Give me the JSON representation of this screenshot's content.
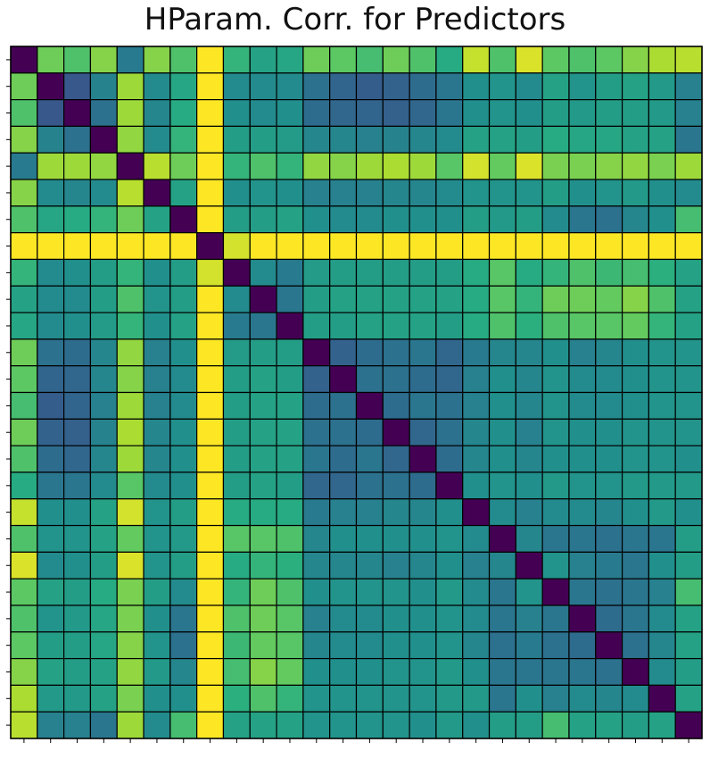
{
  "chart_data": {
    "type": "heatmap",
    "title": "HParam. Corr. for Predictors",
    "xlabel": "",
    "ylabel": "",
    "rows": 26,
    "cols": 26,
    "colormap": "viridis",
    "value_range": [
      0,
      1
    ],
    "grid": true,
    "legend": "none",
    "values": [
      [
        0.0,
        0.78,
        0.72,
        0.82,
        0.42,
        0.82,
        0.72,
        1.0,
        0.66,
        0.58,
        0.6,
        0.78,
        0.75,
        0.7,
        0.78,
        0.72,
        0.62,
        0.92,
        0.72,
        0.95,
        0.75,
        0.72,
        0.75,
        0.82,
        0.88,
        0.9
      ],
      [
        0.78,
        0.0,
        0.28,
        0.45,
        0.86,
        0.48,
        0.6,
        1.0,
        0.48,
        0.48,
        0.48,
        0.38,
        0.33,
        0.3,
        0.32,
        0.36,
        0.4,
        0.5,
        0.52,
        0.48,
        0.58,
        0.52,
        0.56,
        0.58,
        0.54,
        0.44
      ],
      [
        0.72,
        0.28,
        0.0,
        0.38,
        0.86,
        0.46,
        0.62,
        1.0,
        0.5,
        0.48,
        0.5,
        0.36,
        0.34,
        0.33,
        0.31,
        0.34,
        0.4,
        0.5,
        0.52,
        0.5,
        0.56,
        0.54,
        0.56,
        0.56,
        0.54,
        0.44
      ],
      [
        0.82,
        0.45,
        0.38,
        0.0,
        0.84,
        0.48,
        0.66,
        1.0,
        0.56,
        0.56,
        0.55,
        0.46,
        0.46,
        0.44,
        0.45,
        0.46,
        0.48,
        0.58,
        0.58,
        0.56,
        0.62,
        0.6,
        0.6,
        0.58,
        0.58,
        0.4
      ],
      [
        0.42,
        0.86,
        0.86,
        0.84,
        0.0,
        0.9,
        0.78,
        1.0,
        0.66,
        0.72,
        0.66,
        0.84,
        0.82,
        0.86,
        0.88,
        0.86,
        0.74,
        0.94,
        0.76,
        0.95,
        0.8,
        0.8,
        0.82,
        0.84,
        0.8,
        0.86
      ],
      [
        0.82,
        0.48,
        0.46,
        0.48,
        0.9,
        0.0,
        0.58,
        1.0,
        0.5,
        0.52,
        0.5,
        0.44,
        0.44,
        0.44,
        0.46,
        0.46,
        0.48,
        0.52,
        0.52,
        0.52,
        0.56,
        0.5,
        0.52,
        0.54,
        0.5,
        0.48
      ],
      [
        0.72,
        0.6,
        0.62,
        0.66,
        0.78,
        0.58,
        0.0,
        1.0,
        0.56,
        0.56,
        0.58,
        0.5,
        0.48,
        0.48,
        0.5,
        0.5,
        0.5,
        0.56,
        0.54,
        0.56,
        0.48,
        0.4,
        0.38,
        0.46,
        0.5,
        0.7
      ],
      [
        1.0,
        1.0,
        1.0,
        1.0,
        1.0,
        1.0,
        1.0,
        0.0,
        0.94,
        1.0,
        1.0,
        1.0,
        1.0,
        1.0,
        1.0,
        1.0,
        1.0,
        1.0,
        1.0,
        1.0,
        1.0,
        1.0,
        1.0,
        1.0,
        1.0,
        1.0
      ],
      [
        0.66,
        0.48,
        0.5,
        0.56,
        0.66,
        0.5,
        0.56,
        0.94,
        0.0,
        0.48,
        0.42,
        0.55,
        0.56,
        0.56,
        0.56,
        0.56,
        0.56,
        0.62,
        0.74,
        0.62,
        0.66,
        0.72,
        0.68,
        0.7,
        0.64,
        0.58
      ],
      [
        0.58,
        0.48,
        0.48,
        0.56,
        0.72,
        0.52,
        0.56,
        1.0,
        0.48,
        0.0,
        0.4,
        0.56,
        0.58,
        0.58,
        0.58,
        0.58,
        0.58,
        0.62,
        0.74,
        0.66,
        0.78,
        0.78,
        0.76,
        0.82,
        0.72,
        0.58
      ],
      [
        0.6,
        0.48,
        0.5,
        0.55,
        0.66,
        0.5,
        0.58,
        1.0,
        0.42,
        0.4,
        0.0,
        0.56,
        0.56,
        0.58,
        0.58,
        0.58,
        0.56,
        0.62,
        0.72,
        0.64,
        0.72,
        0.74,
        0.74,
        0.76,
        0.66,
        0.58
      ],
      [
        0.78,
        0.38,
        0.36,
        0.46,
        0.84,
        0.44,
        0.5,
        1.0,
        0.55,
        0.56,
        0.56,
        0.0,
        0.32,
        0.36,
        0.38,
        0.4,
        0.34,
        0.42,
        0.46,
        0.46,
        0.5,
        0.44,
        0.46,
        0.5,
        0.52,
        0.52
      ],
      [
        0.75,
        0.33,
        0.34,
        0.46,
        0.82,
        0.44,
        0.48,
        1.0,
        0.56,
        0.58,
        0.56,
        0.32,
        0.0,
        0.38,
        0.38,
        0.36,
        0.34,
        0.44,
        0.5,
        0.46,
        0.52,
        0.48,
        0.48,
        0.5,
        0.52,
        0.52
      ],
      [
        0.7,
        0.3,
        0.33,
        0.44,
        0.86,
        0.44,
        0.48,
        1.0,
        0.56,
        0.58,
        0.58,
        0.36,
        0.38,
        0.0,
        0.36,
        0.4,
        0.38,
        0.44,
        0.5,
        0.46,
        0.52,
        0.48,
        0.48,
        0.5,
        0.52,
        0.52
      ],
      [
        0.78,
        0.32,
        0.31,
        0.45,
        0.88,
        0.46,
        0.5,
        1.0,
        0.56,
        0.58,
        0.58,
        0.38,
        0.38,
        0.36,
        0.0,
        0.34,
        0.38,
        0.46,
        0.5,
        0.44,
        0.52,
        0.5,
        0.5,
        0.52,
        0.52,
        0.52
      ],
      [
        0.72,
        0.36,
        0.34,
        0.46,
        0.86,
        0.46,
        0.5,
        1.0,
        0.56,
        0.58,
        0.58,
        0.4,
        0.36,
        0.4,
        0.34,
        0.0,
        0.36,
        0.46,
        0.5,
        0.46,
        0.5,
        0.5,
        0.5,
        0.52,
        0.52,
        0.5
      ],
      [
        0.62,
        0.4,
        0.4,
        0.48,
        0.74,
        0.48,
        0.5,
        1.0,
        0.56,
        0.58,
        0.56,
        0.34,
        0.34,
        0.38,
        0.38,
        0.36,
        0.0,
        0.5,
        0.52,
        0.5,
        0.54,
        0.52,
        0.52,
        0.54,
        0.54,
        0.54
      ],
      [
        0.92,
        0.5,
        0.5,
        0.58,
        0.94,
        0.52,
        0.56,
        1.0,
        0.62,
        0.62,
        0.62,
        0.42,
        0.44,
        0.44,
        0.46,
        0.46,
        0.5,
        0.0,
        0.48,
        0.44,
        0.48,
        0.48,
        0.46,
        0.5,
        0.54,
        0.5
      ],
      [
        0.72,
        0.52,
        0.52,
        0.58,
        0.76,
        0.52,
        0.54,
        1.0,
        0.74,
        0.74,
        0.72,
        0.46,
        0.5,
        0.5,
        0.5,
        0.5,
        0.52,
        0.48,
        0.0,
        0.46,
        0.4,
        0.4,
        0.38,
        0.4,
        0.4,
        0.56
      ],
      [
        0.95,
        0.48,
        0.5,
        0.56,
        0.95,
        0.52,
        0.56,
        1.0,
        0.62,
        0.66,
        0.64,
        0.46,
        0.46,
        0.46,
        0.44,
        0.46,
        0.5,
        0.44,
        0.46,
        0.0,
        0.52,
        0.44,
        0.42,
        0.4,
        0.5,
        0.56
      ],
      [
        0.75,
        0.58,
        0.56,
        0.62,
        0.8,
        0.56,
        0.48,
        1.0,
        0.66,
        0.78,
        0.72,
        0.5,
        0.52,
        0.52,
        0.52,
        0.5,
        0.54,
        0.48,
        0.4,
        0.52,
        0.0,
        0.4,
        0.38,
        0.4,
        0.44,
        0.7
      ],
      [
        0.72,
        0.52,
        0.54,
        0.6,
        0.8,
        0.5,
        0.4,
        1.0,
        0.72,
        0.78,
        0.74,
        0.44,
        0.48,
        0.48,
        0.5,
        0.5,
        0.52,
        0.48,
        0.4,
        0.44,
        0.4,
        0.0,
        0.36,
        0.4,
        0.48,
        0.58
      ],
      [
        0.75,
        0.56,
        0.56,
        0.6,
        0.82,
        0.52,
        0.38,
        1.0,
        0.68,
        0.76,
        0.74,
        0.46,
        0.48,
        0.48,
        0.5,
        0.5,
        0.52,
        0.46,
        0.38,
        0.42,
        0.38,
        0.36,
        0.0,
        0.38,
        0.46,
        0.58
      ],
      [
        0.82,
        0.58,
        0.56,
        0.58,
        0.84,
        0.54,
        0.46,
        1.0,
        0.7,
        0.82,
        0.76,
        0.5,
        0.5,
        0.5,
        0.52,
        0.52,
        0.54,
        0.5,
        0.4,
        0.4,
        0.4,
        0.4,
        0.38,
        0.0,
        0.48,
        0.56
      ],
      [
        0.88,
        0.54,
        0.54,
        0.58,
        0.8,
        0.5,
        0.5,
        1.0,
        0.64,
        0.72,
        0.66,
        0.52,
        0.52,
        0.52,
        0.52,
        0.52,
        0.54,
        0.54,
        0.4,
        0.5,
        0.44,
        0.48,
        0.46,
        0.48,
        0.0,
        0.58
      ],
      [
        0.9,
        0.44,
        0.44,
        0.4,
        0.86,
        0.48,
        0.7,
        1.0,
        0.58,
        0.58,
        0.58,
        0.52,
        0.52,
        0.52,
        0.52,
        0.5,
        0.54,
        0.5,
        0.56,
        0.56,
        0.7,
        0.58,
        0.58,
        0.56,
        0.58,
        0.0
      ]
    ]
  }
}
